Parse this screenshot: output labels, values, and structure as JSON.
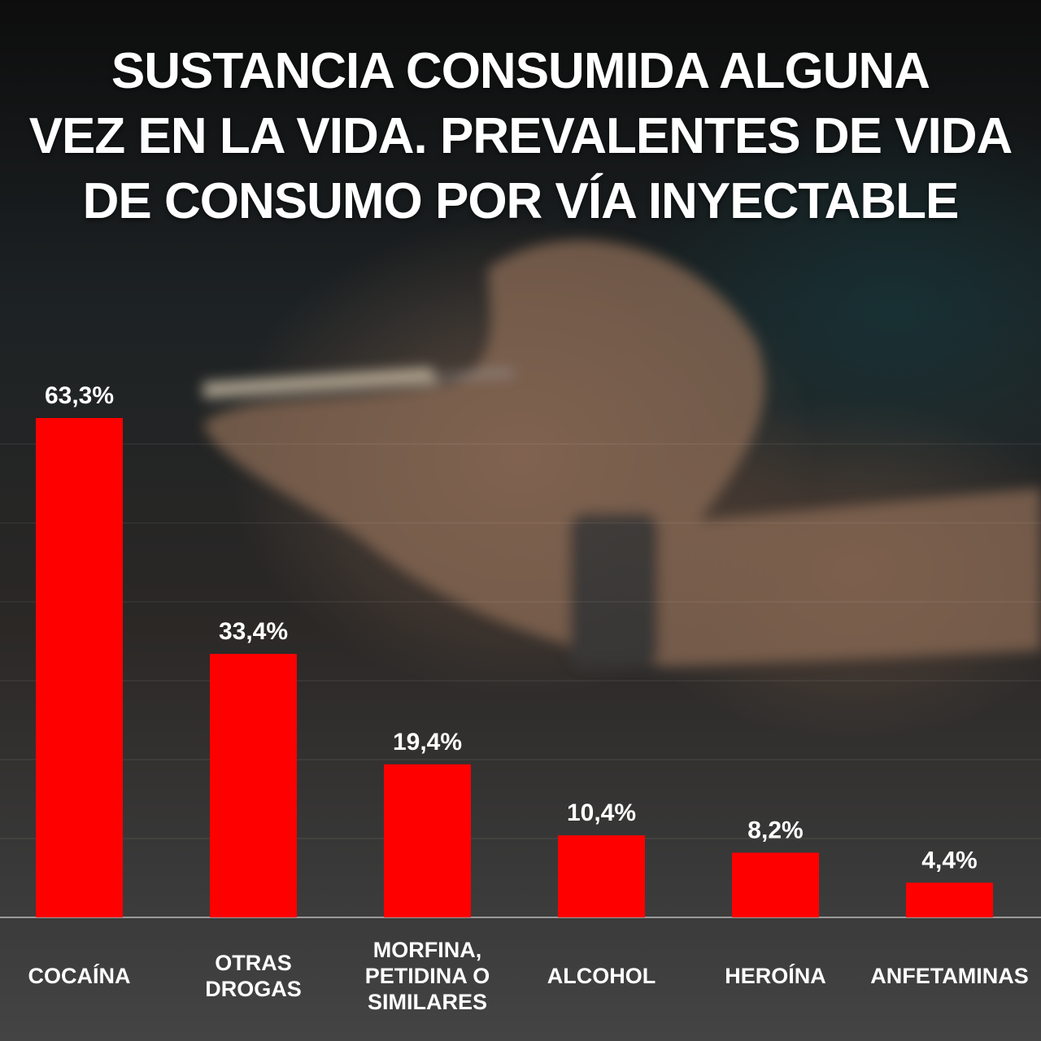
{
  "title_lines": [
    "SUSTANCIA CONSUMIDA ALGUNA",
    "VEZ EN LA VIDA. PREVALENTES DE VIDA",
    "DE CONSUMO POR VÍA INYECTABLE"
  ],
  "colors": {
    "bar": "#ff0000",
    "text": "#ffffff"
  },
  "chart_data": {
    "type": "bar",
    "title": "SUSTANCIA CONSUMIDA ALGUNA VEZ EN LA VIDA. PREVALENTES DE VIDA DE CONSUMO POR VÍA INYECTABLE",
    "categories": [
      "COCAÍNA",
      "OTRAS DROGAS",
      "MORFINA, PETIDINA O SIMILARES",
      "ALCOHOL",
      "HEROÍNA",
      "ANFETAMINAS"
    ],
    "category_display": [
      "COCAÍNA",
      "OTRAS\nDROGAS",
      "MORFINA,\nPETIDINA O\nSIMILARES",
      "ALCOHOL",
      "HEROÍNA",
      "ANFETAMINAS"
    ],
    "values": [
      63.3,
      33.4,
      19.4,
      10.4,
      8.2,
      4.4
    ],
    "value_labels": [
      "63,3%",
      "33,4%",
      "19,4%",
      "10,4%",
      "8,2%",
      "4,4%"
    ],
    "ylim": [
      0,
      70
    ],
    "grid": true,
    "legend": "none"
  }
}
